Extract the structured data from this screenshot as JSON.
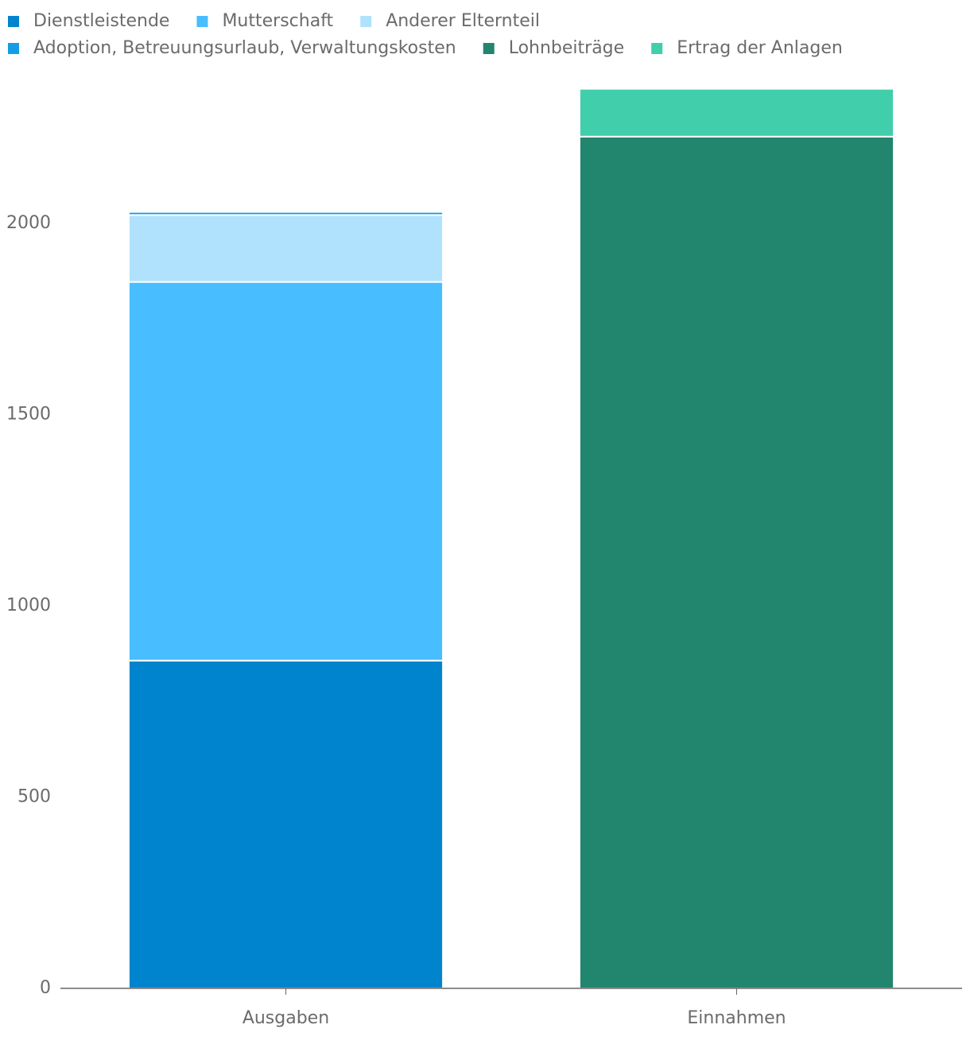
{
  "chart_data": {
    "type": "stacked_bar",
    "categories": [
      "Ausgaben",
      "Einnahmen"
    ],
    "series": [
      {
        "name": "Dienstleistende",
        "color": "#0084cd",
        "values": [
          857,
          null
        ]
      },
      {
        "name": "Mutterschaft",
        "color": "#48bdff",
        "values": [
          990,
          null
        ]
      },
      {
        "name": "Anderer Elternteil",
        "color": "#b0e2fd",
        "values": [
          175,
          null
        ]
      },
      {
        "name": "Adoption, Betreuungsurlaub, Verwaltungskosten",
        "color": "#149de6",
        "values": [
          8,
          null
        ]
      },
      {
        "name": "Lohnbeiträge",
        "color": "#22856d",
        "values": [
          null,
          2227
        ]
      },
      {
        "name": "Ertrag der Anlagen",
        "color": "#41ceab",
        "values": [
          null,
          125
        ]
      }
    ],
    "ylim": [
      0,
      2400
    ],
    "yticks": [
      0,
      500,
      1000,
      1500,
      2000
    ],
    "grid": false
  }
}
